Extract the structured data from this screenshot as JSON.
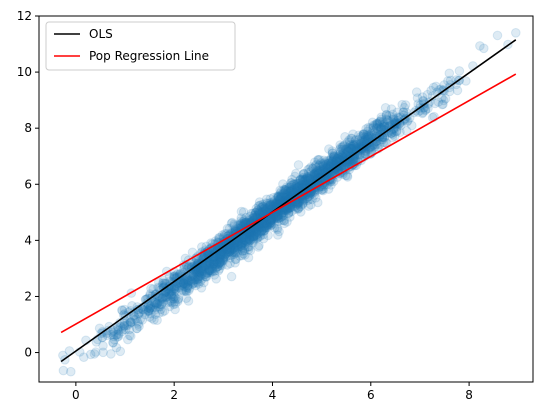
{
  "chart_data": {
    "type": "scatter",
    "title": "",
    "xlabel": "",
    "ylabel": "",
    "xlim": [
      -0.75,
      9.3
    ],
    "ylim": [
      -1.05,
      12.0
    ],
    "xticks": [
      0,
      2,
      4,
      6,
      8
    ],
    "yticks": [
      0,
      2,
      4,
      6,
      8,
      10,
      12
    ],
    "grid": false,
    "legend_position": "top-left",
    "scatter": {
      "color": "#1f77b4",
      "opacity": 0.15,
      "description_x_range": [
        -0.3,
        8.95
      ],
      "band_points": [
        {
          "x": -0.25,
          "y": -0.35
        },
        {
          "x": 0.5,
          "y": 0.45
        },
        {
          "x": 1.0,
          "y": 0.95
        },
        {
          "x": 2.0,
          "y": 2.3
        },
        {
          "x": 3.0,
          "y": 3.6
        },
        {
          "x": 4.0,
          "y": 5.0
        },
        {
          "x": 5.0,
          "y": 6.3
        },
        {
          "x": 6.0,
          "y": 7.6
        },
        {
          "x": 7.0,
          "y": 8.8
        },
        {
          "x": 7.8,
          "y": 9.7
        },
        {
          "x": 8.3,
          "y": 10.85
        },
        {
          "x": 8.95,
          "y": 11.4
        }
      ]
    },
    "series": [
      {
        "name": "OLS",
        "color": "#000000",
        "x": [
          -0.3,
          8.95
        ],
        "y": [
          -0.32,
          11.15
        ]
      },
      {
        "name": "Pop Regression Line",
        "color": "#ff0000",
        "x": [
          -0.3,
          8.95
        ],
        "y": [
          0.72,
          9.93
        ]
      }
    ]
  }
}
